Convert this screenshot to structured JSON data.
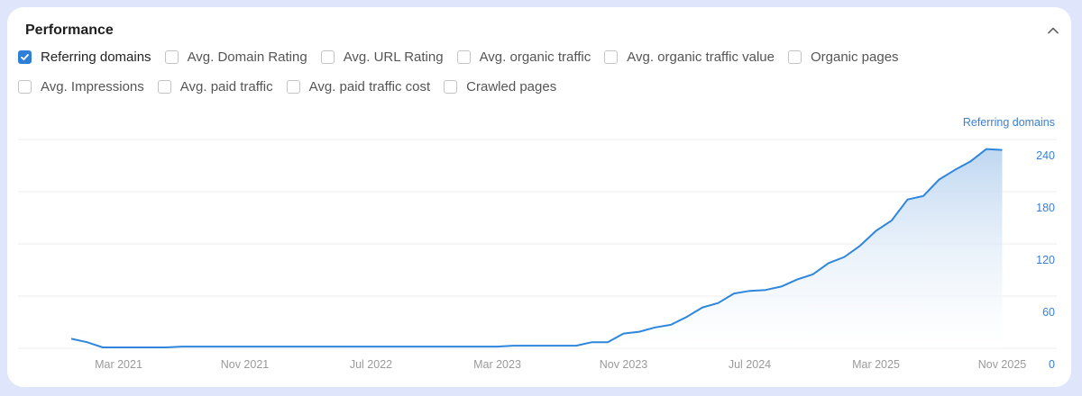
{
  "panel": {
    "title": "Performance",
    "collapse_icon": "chevron-up-icon"
  },
  "metrics": [
    {
      "label": "Referring domains",
      "checked": true
    },
    {
      "label": "Avg. Domain Rating",
      "checked": false
    },
    {
      "label": "Avg. URL Rating",
      "checked": false
    },
    {
      "label": "Avg. organic traffic",
      "checked": false
    },
    {
      "label": "Avg. organic traffic value",
      "checked": false
    },
    {
      "label": "Organic pages",
      "checked": false
    },
    {
      "label": "Avg. Impressions",
      "checked": false
    },
    {
      "label": "Avg. paid traffic",
      "checked": false
    },
    {
      "label": "Avg. paid traffic cost",
      "checked": false
    },
    {
      "label": "Crawled pages",
      "checked": false
    }
  ],
  "colors": {
    "line": "#2f86dd",
    "fill_top": "#bcd5f0",
    "accent": "#2f7fd8"
  },
  "chart_data": {
    "type": "area",
    "ylabel": "Referring domains",
    "ylim": [
      0,
      240
    ],
    "yticks": [
      0,
      60,
      120,
      180,
      240
    ],
    "xtick_labels": [
      "Mar 2021",
      "Nov 2021",
      "Jul 2022",
      "Mar 2023",
      "Nov 2023",
      "Jul 2024",
      "Mar 2025",
      "Nov 2025"
    ],
    "xticks": [
      "2021-03",
      "2021-11",
      "2022-07",
      "2023-03",
      "2023-11",
      "2024-07",
      "2025-03",
      "2025-11"
    ],
    "grid": true,
    "y_axis_side": "right",
    "series": [
      {
        "name": "Referring domains",
        "x": [
          "2020-12",
          "2021-01",
          "2021-02",
          "2021-03",
          "2021-04",
          "2021-05",
          "2021-06",
          "2021-07",
          "2021-08",
          "2021-09",
          "2021-10",
          "2021-11",
          "2021-12",
          "2022-01",
          "2022-02",
          "2022-03",
          "2022-04",
          "2022-05",
          "2022-06",
          "2022-07",
          "2022-08",
          "2022-09",
          "2022-10",
          "2022-11",
          "2022-12",
          "2023-01",
          "2023-02",
          "2023-03",
          "2023-04",
          "2023-05",
          "2023-06",
          "2023-07",
          "2023-08",
          "2023-09",
          "2023-10",
          "2023-11",
          "2023-12",
          "2024-01",
          "2024-02",
          "2024-03",
          "2024-04",
          "2024-05",
          "2024-06",
          "2024-07",
          "2024-08",
          "2024-09",
          "2024-10",
          "2024-11",
          "2024-12",
          "2025-01",
          "2025-02",
          "2025-03",
          "2025-04",
          "2025-05",
          "2025-06",
          "2025-07",
          "2025-08",
          "2025-09",
          "2025-10",
          "2025-11"
        ],
        "y": [
          11,
          7,
          1,
          1,
          1,
          1,
          1,
          2,
          2,
          2,
          2,
          2,
          2,
          2,
          2,
          2,
          2,
          2,
          2,
          2,
          2,
          2,
          2,
          2,
          2,
          2,
          2,
          2,
          3,
          3,
          3,
          3,
          3,
          7,
          7,
          17,
          19,
          24,
          27,
          36,
          47,
          52,
          63,
          66,
          67,
          71,
          79,
          85,
          98,
          105,
          118,
          135,
          147,
          171,
          175,
          194,
          205,
          215,
          229,
          228
        ]
      }
    ]
  }
}
